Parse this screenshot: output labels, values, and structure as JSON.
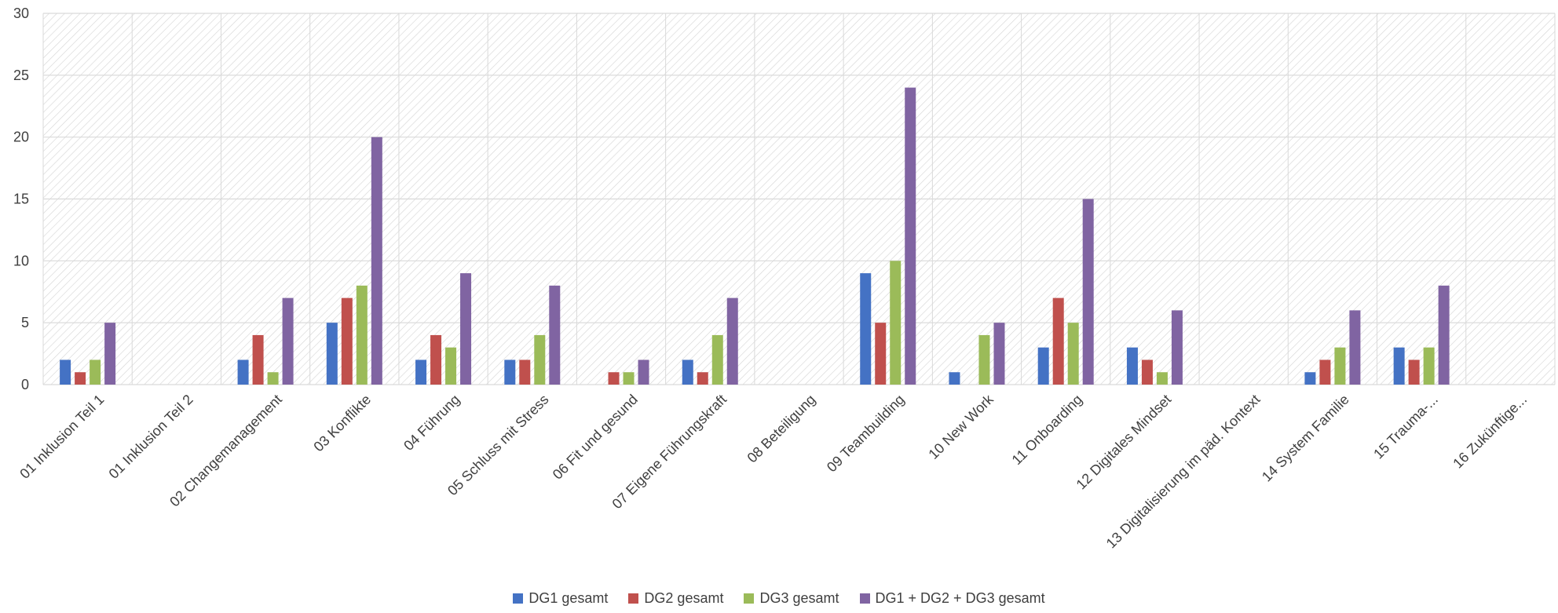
{
  "chart_data": {
    "type": "bar",
    "title": "",
    "xlabel": "",
    "ylabel": "",
    "ylim": [
      0,
      30
    ],
    "yticks": [
      0,
      5,
      10,
      15,
      20,
      25,
      30
    ],
    "grid": true,
    "legend_position": "bottom",
    "categories": [
      "01 Inklusion Teil 1",
      "01 Inklusion Teil 2",
      "02 Changemanagement",
      "03 Konflikte",
      "04 Führung",
      "05 Schluss mit Stress",
      "06 Fit und gesund",
      "07 Eigene Führungskraft",
      "08 Beteiligung",
      "09 Teambuilding",
      "10 New Work",
      "11  Onboarding",
      "12 Digitales Mindset",
      "13 Digitalisierung im päd.  Kontext",
      "14 System Familie",
      "15 Trauma-...",
      "16 Zukünftige..."
    ],
    "series": [
      {
        "name": "DG1 gesamt",
        "color": "#4472C4",
        "values": [
          2,
          null,
          2,
          5,
          2,
          2,
          null,
          2,
          null,
          9,
          1,
          3,
          3,
          null,
          1,
          3,
          null
        ]
      },
      {
        "name": "DG2 gesamt",
        "color": "#C0504D",
        "values": [
          1,
          null,
          4,
          7,
          4,
          2,
          1,
          1,
          null,
          5,
          null,
          7,
          2,
          null,
          2,
          2,
          null
        ]
      },
      {
        "name": "DG3 gesamt",
        "color": "#9BBB59",
        "values": [
          2,
          null,
          1,
          8,
          3,
          4,
          1,
          4,
          null,
          10,
          4,
          5,
          1,
          null,
          3,
          3,
          null
        ]
      },
      {
        "name": "DG1 + DG2 + DG3 gesamt",
        "color": "#8064A2",
        "values": [
          5,
          null,
          7,
          20,
          9,
          8,
          2,
          7,
          null,
          24,
          5,
          15,
          6,
          null,
          6,
          8,
          null
        ]
      }
    ]
  }
}
